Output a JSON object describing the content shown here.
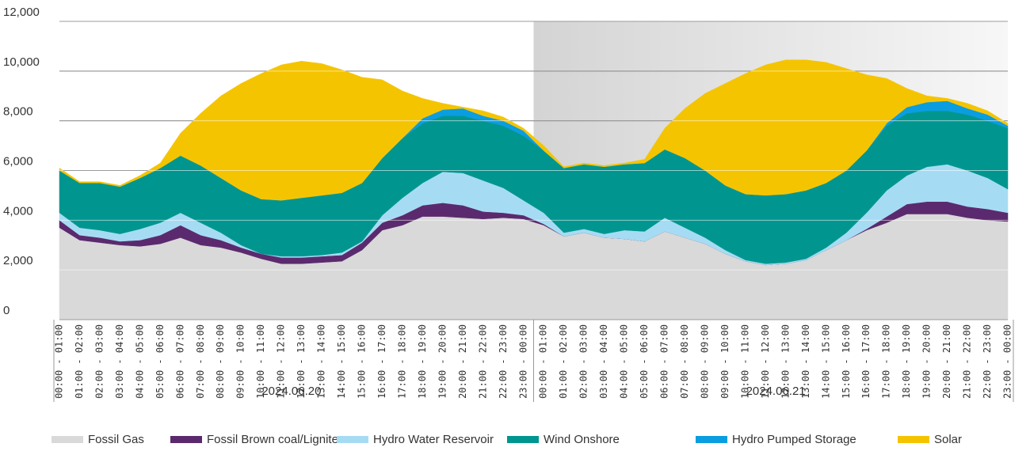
{
  "chart_data": {
    "type": "stacked_area",
    "categories": [
      "00:00 - 01:00",
      "01:00 - 02:00",
      "02:00 - 03:00",
      "03:00 - 04:00",
      "04:00 - 05:00",
      "05:00 - 06:00",
      "06:00 - 07:00",
      "07:00 - 08:00",
      "08:00 - 09:00",
      "09:00 - 10:00",
      "10:00 - 11:00",
      "11:00 - 12:00",
      "12:00 - 13:00",
      "13:00 - 14:00",
      "14:00 - 15:00",
      "15:00 - 16:00",
      "16:00 - 17:00",
      "17:00 - 18:00",
      "18:00 - 19:00",
      "19:00 - 20:00",
      "20:00 - 21:00",
      "21:00 - 22:00",
      "22:00 - 23:00",
      "23:00 - 00:00",
      "00:00 - 01:00",
      "01:00 - 02:00",
      "02:00 - 03:00",
      "03:00 - 04:00",
      "04:00 - 05:00",
      "05:00 - 06:00",
      "06:00 - 07:00",
      "07:00 - 08:00",
      "08:00 - 09:00",
      "09:00 - 10:00",
      "10:00 - 11:00",
      "11:00 - 12:00",
      "12:00 - 13:00",
      "13:00 - 14:00",
      "14:00 - 15:00",
      "15:00 - 16:00",
      "16:00 - 17:00",
      "17:00 - 18:00",
      "18:00 - 19:00",
      "19:00 - 20:00",
      "20:00 - 21:00",
      "21:00 - 22:00",
      "22:00 - 23:00",
      "23:00 - 00:00"
    ],
    "groups": [
      "2024.06.20",
      "2024.06.21"
    ],
    "series": [
      {
        "name": "Fossil Gas",
        "color": "#d9d9d9",
        "values": [
          3700,
          3200,
          3100,
          3000,
          2950,
          3050,
          3300,
          3000,
          2900,
          2700,
          2450,
          2250,
          2250,
          2300,
          2350,
          2800,
          3600,
          3800,
          4150,
          4150,
          4100,
          4050,
          4100,
          4050,
          3800,
          3350,
          3500,
          3300,
          3250,
          3150,
          3550,
          3300,
          3050,
          2650,
          2350,
          2200,
          2250,
          2400,
          2800,
          3200,
          3600,
          3900,
          4250,
          4250,
          4250,
          4100,
          4000,
          3950
        ]
      },
      {
        "name": "Fossil Brown coal/Lignite",
        "color": "#5b2a6e",
        "values": [
          300,
          200,
          200,
          150,
          250,
          350,
          500,
          400,
          300,
          200,
          200,
          250,
          250,
          250,
          250,
          300,
          300,
          400,
          450,
          550,
          500,
          300,
          200,
          150,
          50,
          0,
          0,
          0,
          0,
          0,
          0,
          0,
          0,
          0,
          0,
          0,
          0,
          0,
          0,
          0,
          50,
          250,
          400,
          500,
          500,
          450,
          450,
          350
        ]
      },
      {
        "name": "Hydro Water Reservoir",
        "color": "#a6dcf3",
        "values": [
          300,
          300,
          300,
          300,
          450,
          500,
          500,
          500,
          300,
          100,
          0,
          50,
          50,
          50,
          100,
          50,
          300,
          700,
          900,
          1250,
          1300,
          1250,
          1000,
          600,
          450,
          150,
          150,
          150,
          350,
          400,
          550,
          400,
          250,
          150,
          50,
          50,
          50,
          50,
          100,
          300,
          650,
          1050,
          1150,
          1400,
          1500,
          1450,
          1250,
          950
        ]
      },
      {
        "name": "Wind Onshore",
        "color": "#00968f",
        "values": [
          1700,
          1800,
          1900,
          1900,
          2050,
          2200,
          2300,
          2300,
          2200,
          2200,
          2200,
          2250,
          2350,
          2400,
          2400,
          2350,
          2300,
          2400,
          2400,
          2250,
          2300,
          2400,
          2500,
          2600,
          2500,
          2600,
          2600,
          2700,
          2650,
          2750,
          2750,
          2800,
          2700,
          2600,
          2650,
          2750,
          2750,
          2750,
          2600,
          2500,
          2500,
          2600,
          2500,
          2250,
          2150,
          2250,
          2300,
          2450
        ]
      },
      {
        "name": "Hydro Pumped Storage",
        "color": "#0a9de0",
        "values": [
          0,
          0,
          0,
          0,
          0,
          0,
          0,
          0,
          0,
          0,
          0,
          0,
          0,
          0,
          0,
          0,
          0,
          0,
          200,
          250,
          300,
          200,
          200,
          200,
          0,
          0,
          0,
          0,
          0,
          0,
          0,
          0,
          0,
          0,
          0,
          0,
          0,
          0,
          0,
          0,
          0,
          100,
          250,
          350,
          400,
          250,
          250,
          100
        ]
      },
      {
        "name": "Solar",
        "color": "#f5c400",
        "values": [
          100,
          50,
          50,
          50,
          100,
          200,
          900,
          2100,
          3300,
          4300,
          5050,
          5450,
          5500,
          5300,
          4950,
          4250,
          3150,
          1900,
          800,
          250,
          50,
          200,
          150,
          100,
          200,
          50,
          50,
          50,
          50,
          150,
          850,
          2000,
          3100,
          4100,
          4850,
          5250,
          5400,
          5250,
          4850,
          4100,
          3050,
          1800,
          750,
          250,
          100,
          200,
          150,
          100
        ]
      }
    ],
    "ylim": [
      0,
      12000
    ],
    "yticks": [
      0,
      {
        "value": 2000,
        "label": "2,000"
      },
      {
        "value": 4000,
        "label": "4,000"
      },
      {
        "value": 6000,
        "label": "6,000"
      },
      {
        "value": 8000,
        "label": "8,000"
      },
      {
        "value": 10000,
        "label": "10,000"
      },
      {
        "value": 12000,
        "label": "12,000"
      }
    ],
    "grid": true
  }
}
